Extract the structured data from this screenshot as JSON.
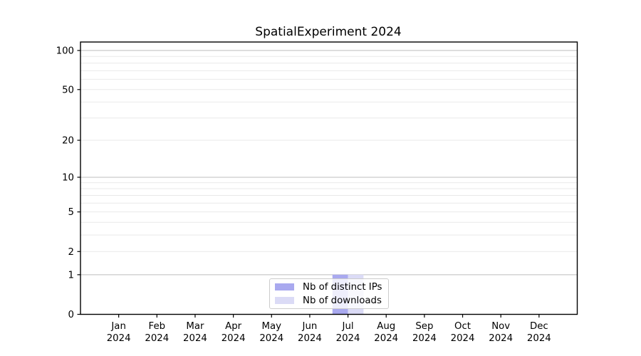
{
  "chart_data": {
    "type": "bar",
    "title": "SpatialExperiment 2024",
    "xlabel": "",
    "ylabel": "",
    "scale": "log1p (log-style y axis with 0 baseline)",
    "categories": [
      "Jan",
      "Feb",
      "Mar",
      "Apr",
      "May",
      "Jun",
      "Jul",
      "Aug",
      "Sep",
      "Oct",
      "Nov",
      "Dec"
    ],
    "category_year": "2024",
    "series": [
      {
        "name": "Nb of distinct IPs",
        "color": "#a9a9ef",
        "values": [
          0,
          0,
          0,
          0,
          0,
          0,
          1,
          0,
          0,
          0,
          0,
          0
        ]
      },
      {
        "name": "Nb of downloads",
        "color": "#dbdbf6",
        "values": [
          0,
          0,
          0,
          0,
          0,
          0,
          1,
          0,
          0,
          0,
          0,
          0
        ]
      }
    ],
    "y_ticks": [
      0,
      1,
      2,
      5,
      10,
      20,
      50,
      100
    ],
    "ylim": [
      0,
      115
    ],
    "grid": true,
    "major_gridlines": [
      1,
      10,
      100
    ],
    "minor_gridlines": [
      2,
      3,
      4,
      5,
      6,
      7,
      8,
      9,
      20,
      30,
      40,
      50,
      60,
      70,
      80,
      90
    ],
    "legend_position": "lower center"
  },
  "legend": {
    "items": [
      {
        "label": "Nb of distinct IPs",
        "color": "#a9a9ef"
      },
      {
        "label": "Nb of downloads",
        "color": "#dbdbf6"
      }
    ]
  },
  "colors": {
    "background": "#ffffff",
    "axis": "#000000",
    "tick_label": "#000000",
    "grid_major": "#bdbdbd",
    "grid_minor": "#e9e9e9",
    "legend_border": "#cccccc",
    "bar_distinct_ips": "#a9a9ef",
    "bar_downloads": "#dbdbf6"
  }
}
